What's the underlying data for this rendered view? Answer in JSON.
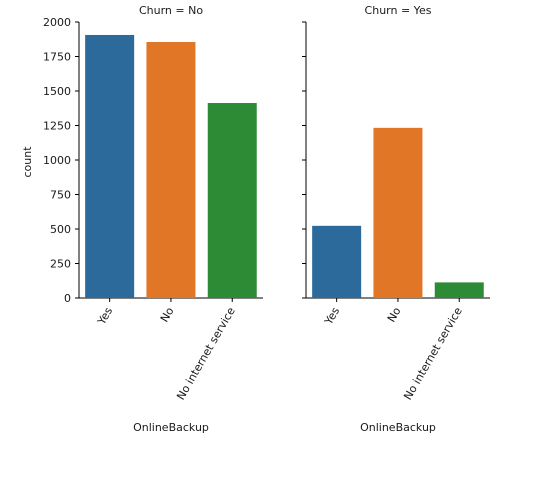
{
  "chart_data": {
    "type": "bar",
    "ylabel": "count",
    "ylim": [
      0,
      2000
    ],
    "yticks": [
      "0",
      "250",
      "500",
      "750",
      "1000",
      "1250",
      "1500",
      "1750",
      "2000"
    ],
    "shared_y": true,
    "grid": false,
    "panels": [
      {
        "title": "Churn = No",
        "xlabel": "OnlineBackup",
        "categories": [
          "Yes",
          "No",
          "No internet service"
        ],
        "values": [
          1906,
          1855,
          1413
        ],
        "colors": [
          "#2c6a9b",
          "#e07626",
          "#2e8b35"
        ]
      },
      {
        "title": "Churn = Yes",
        "xlabel": "OnlineBackup",
        "categories": [
          "Yes",
          "No",
          "No internet service"
        ],
        "values": [
          523,
          1233,
          113
        ],
        "colors": [
          "#2c6a9b",
          "#e07626",
          "#2e8b35"
        ]
      }
    ]
  }
}
